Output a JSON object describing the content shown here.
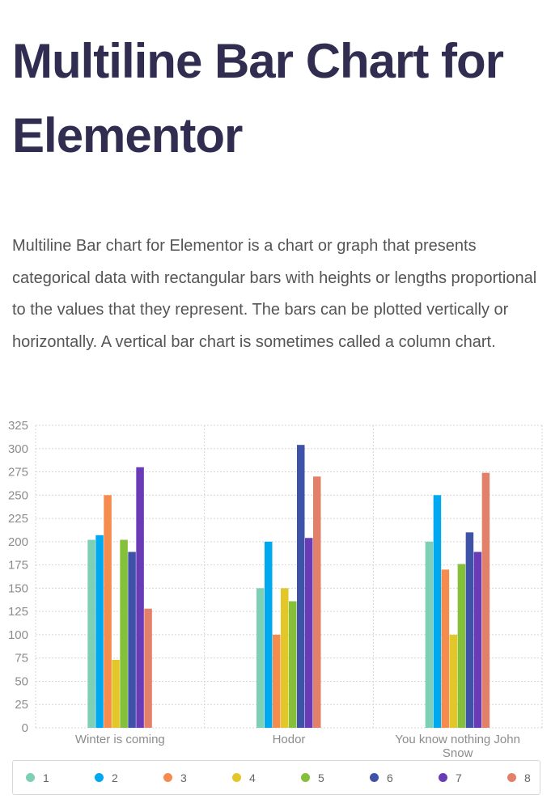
{
  "page": {
    "title": "Multiline Bar Chart for Elementor",
    "description": "Multiline Bar chart for Elementor is a chart or graph that presents categorical data with rectangular bars with heights or lengths proportional to the values that they represent. The bars can be plotted vertically or horizontally. A vertical bar chart is sometimes called a column chart."
  },
  "chart_data": {
    "type": "bar",
    "categories": [
      [
        "Winter is coming"
      ],
      [
        "Hodor"
      ],
      [
        "You know nothing John",
        "Snow"
      ]
    ],
    "ylim": [
      0,
      325
    ],
    "y_ticks": [
      "0",
      "25",
      "50",
      "75",
      "100",
      "125",
      "150",
      "175",
      "200",
      "225",
      "250",
      "275",
      "300",
      "325"
    ],
    "grid": true,
    "legend_position": "bottom",
    "series": [
      {
        "name": "1",
        "color": "#7dcfb6",
        "values": [
          202,
          150,
          200
        ]
      },
      {
        "name": "2",
        "color": "#00a8f0",
        "values": [
          207,
          200,
          250
        ]
      },
      {
        "name": "3",
        "color": "#f58b4c",
        "values": [
          250,
          100,
          170
        ]
      },
      {
        "name": "4",
        "color": "#e3c627",
        "values": [
          73,
          150,
          100
        ]
      },
      {
        "name": "5",
        "color": "#84c03a",
        "values": [
          202,
          136,
          176
        ]
      },
      {
        "name": "6",
        "color": "#3e52a8",
        "values": [
          189,
          304,
          210
        ]
      },
      {
        "name": "7",
        "color": "#6a3bb6",
        "values": [
          280,
          204,
          189
        ]
      },
      {
        "name": "8",
        "color": "#e3806a",
        "values": [
          128,
          270,
          274
        ]
      }
    ]
  }
}
